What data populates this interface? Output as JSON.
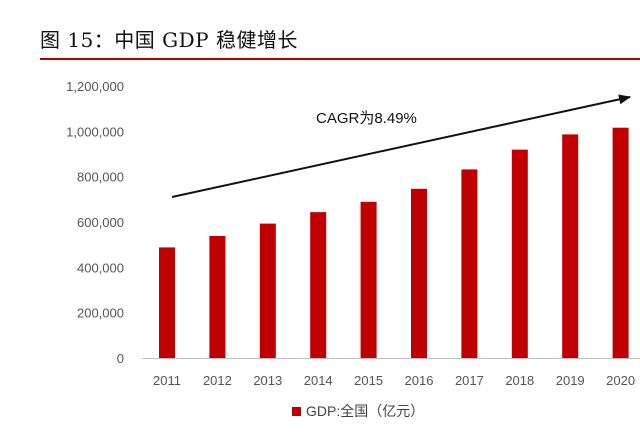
{
  "figure_title": "图 15：中国 GDP 稳健增长",
  "colors": {
    "accent": "#c00000",
    "bar": "#c00000",
    "axis": "#bfbfbf",
    "text": "#555555"
  },
  "chart_data": {
    "type": "bar",
    "categories": [
      "2011",
      "2012",
      "2013",
      "2014",
      "2015",
      "2016",
      "2017",
      "2018",
      "2019",
      "2020"
    ],
    "series": [
      {
        "name": "GDP:全国（亿元）",
        "values": [
          487940,
          538580,
          592963,
          643563,
          688858,
          746395,
          832036,
          919281,
          986515,
          1015986
        ]
      }
    ],
    "ylim": [
      0,
      1200000
    ],
    "yticks": [
      0,
      200000,
      400000,
      600000,
      800000,
      1000000,
      1200000
    ],
    "ytick_labels": [
      "0",
      "200,000",
      "400,000",
      "600,000",
      "800,000",
      "1,000,000",
      "1,200,000"
    ],
    "grid": false,
    "legend_position": "bottom",
    "annotation": {
      "text": "CAGR为8.49%",
      "type": "trend-arrow"
    }
  }
}
